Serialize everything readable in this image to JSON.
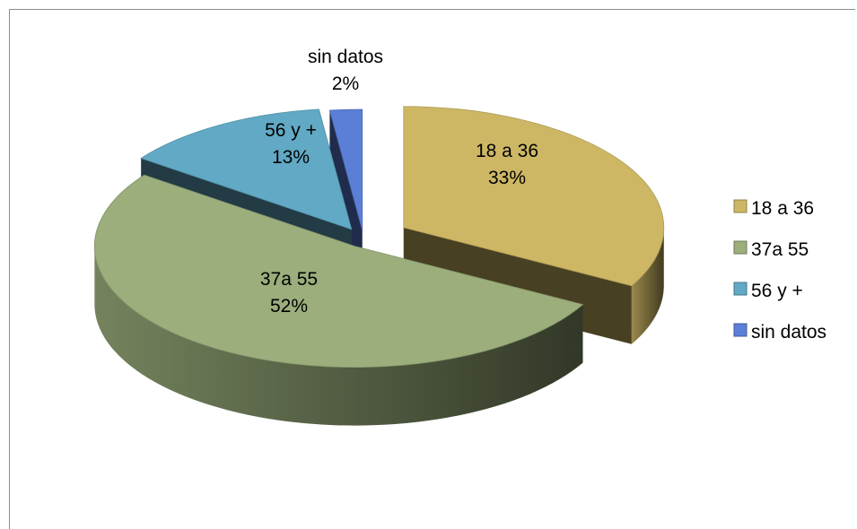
{
  "chart_data": {
    "type": "pie",
    "title": "",
    "categories": [
      "18 a 36",
      "37a 55",
      "56 y +",
      "sin datos"
    ],
    "values": [
      33,
      52,
      13,
      2
    ],
    "labels": [
      "33%",
      "52%",
      "13%",
      "2%"
    ],
    "colors": [
      "#cdb765",
      "#9bae7c",
      "#61a9c4",
      "#5b7ed6"
    ],
    "legend_position": "right",
    "exploded": true,
    "three_d": true
  }
}
